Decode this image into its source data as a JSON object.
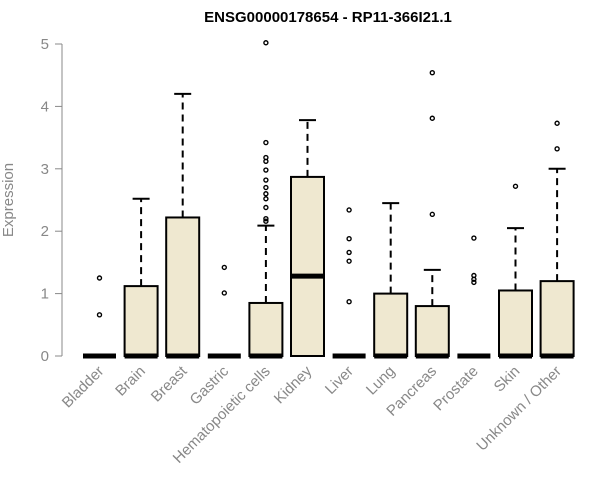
{
  "chart_data": {
    "type": "boxplot",
    "title": "ENSG00000178654 - RP11-366I21.1",
    "ylabel": "Expression",
    "xlabel": "",
    "ylim": [
      0,
      5
    ],
    "yticks": [
      0,
      1,
      2,
      3,
      4,
      5
    ],
    "grid": false,
    "box_color": "#efe8d0",
    "categories": [
      "Bladder",
      "Brain",
      "Breast",
      "Gastric",
      "Hematopoietic cells",
      "Kidney",
      "Liver",
      "Lung",
      "Pancreas",
      "Prostate",
      "Skin",
      "Unknown / Other"
    ],
    "boxes": [
      {
        "q1": 0,
        "median": 0,
        "q3": 0,
        "whisker_low": 0,
        "whisker_high": 0,
        "outliers": [
          1.25,
          0.66
        ]
      },
      {
        "q1": 0,
        "median": 0,
        "q3": 1.12,
        "whisker_low": 0,
        "whisker_high": 2.52,
        "outliers": []
      },
      {
        "q1": 0,
        "median": 0,
        "q3": 2.22,
        "whisker_low": 0,
        "whisker_high": 4.2,
        "outliers": []
      },
      {
        "q1": 0,
        "median": 0,
        "q3": 0,
        "whisker_low": 0,
        "whisker_high": 0,
        "outliers": [
          1.42,
          1.01
        ]
      },
      {
        "q1": 0,
        "median": 0,
        "q3": 0.85,
        "whisker_low": 0,
        "whisker_high": 2.09,
        "outliers": [
          5.02,
          3.42,
          3.18,
          3.12,
          2.98,
          2.82,
          2.7,
          2.6,
          2.52,
          2.38,
          2.2,
          2.16
        ]
      },
      {
        "q1": 0,
        "median": 1.28,
        "q3": 2.87,
        "whisker_low": 0,
        "whisker_high": 3.78,
        "outliers": []
      },
      {
        "q1": 0,
        "median": 0,
        "q3": 0,
        "whisker_low": 0,
        "whisker_high": 0,
        "outliers": [
          2.34,
          1.88,
          1.66,
          1.52,
          0.87
        ]
      },
      {
        "q1": 0,
        "median": 0,
        "q3": 1.0,
        "whisker_low": 0,
        "whisker_high": 2.45,
        "outliers": []
      },
      {
        "q1": 0,
        "median": 0,
        "q3": 0.8,
        "whisker_low": 0,
        "whisker_high": 1.38,
        "outliers": [
          4.54,
          3.81,
          2.27
        ]
      },
      {
        "q1": 0,
        "median": 0,
        "q3": 0,
        "whisker_low": 0,
        "whisker_high": 0,
        "outliers": [
          1.89,
          1.29,
          1.23,
          1.18
        ]
      },
      {
        "q1": 0,
        "median": 0,
        "q3": 1.05,
        "whisker_low": 0,
        "whisker_high": 2.05,
        "outliers": [
          2.72
        ]
      },
      {
        "q1": 0,
        "median": 0,
        "q3": 1.2,
        "whisker_low": 0,
        "whisker_high": 3.0,
        "outliers": [
          3.73,
          3.32
        ]
      }
    ]
  }
}
